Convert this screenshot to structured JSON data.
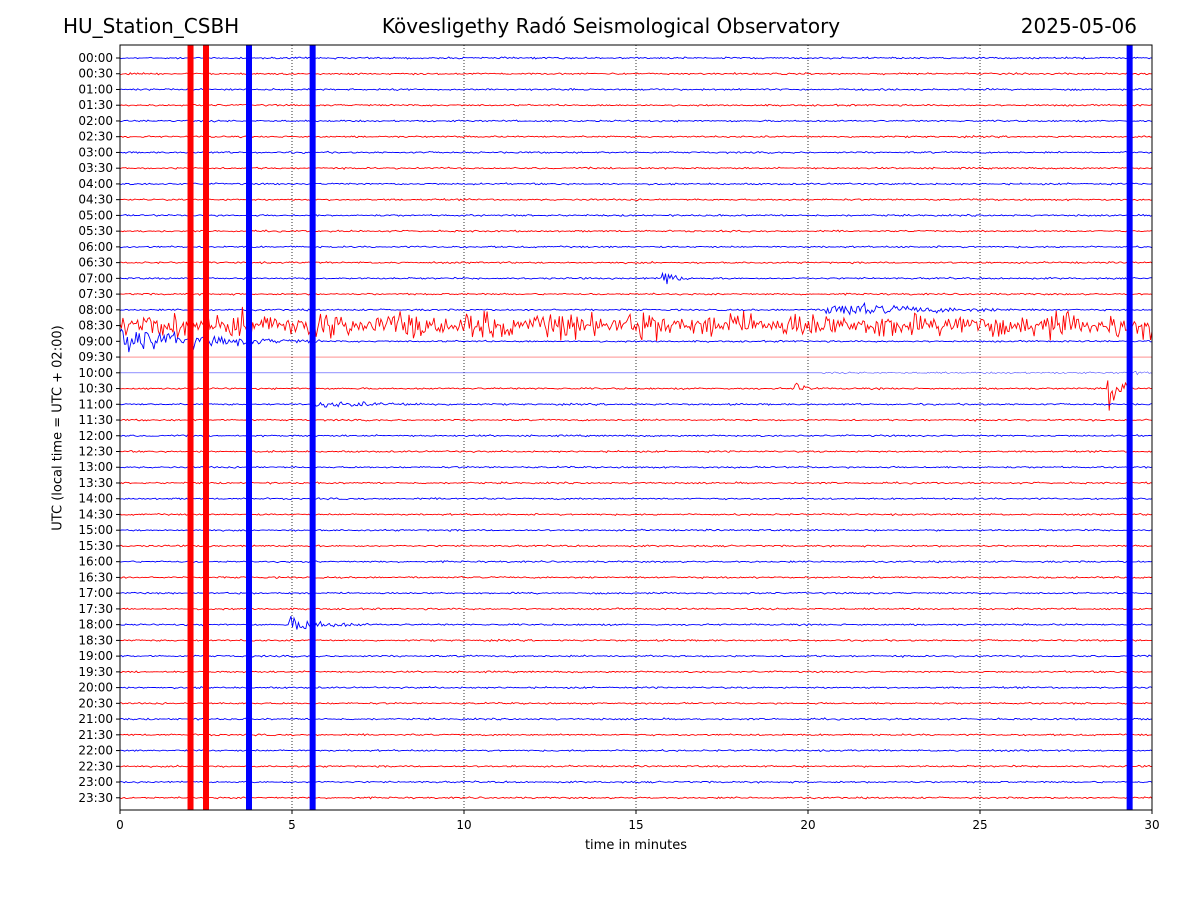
{
  "header": {
    "station": "HU_Station_CSBH",
    "observatory": "Kövesligethy Radó Seismological Observatory",
    "date": "2025-05-06"
  },
  "chart_data": {
    "type": "line",
    "title": "Kövesligethy Radó Seismological Observatory",
    "xlabel": "time in minutes",
    "ylabel": "UTC (local time = UTC + 02:00)",
    "xlim": [
      0,
      30
    ],
    "x_ticks": [
      0,
      5,
      10,
      15,
      20,
      25,
      30
    ],
    "grid": "vertical dotted at x ticks",
    "row_labels": [
      "00:00",
      "00:30",
      "01:00",
      "01:30",
      "02:00",
      "02:30",
      "03:00",
      "03:30",
      "04:00",
      "04:30",
      "05:00",
      "05:30",
      "06:00",
      "06:30",
      "07:00",
      "07:30",
      "08:00",
      "08:30",
      "09:00",
      "09:30",
      "10:00",
      "10:30",
      "11:00",
      "11:30",
      "12:00",
      "12:30",
      "13:00",
      "13:30",
      "14:00",
      "14:30",
      "15:00",
      "15:30",
      "16:00",
      "16:30",
      "17:00",
      "17:30",
      "18:00",
      "18:30",
      "19:00",
      "19:30",
      "20:00",
      "20:30",
      "21:00",
      "21:30",
      "22:00",
      "22:30",
      "23:00",
      "23:30"
    ],
    "colors": {
      "even_rows": "#0000ff",
      "odd_rows": "#ff0000"
    },
    "persistent_bands": [
      {
        "x_min": 2.05,
        "color": "#ff0000"
      },
      {
        "x_min": 2.5,
        "color": "#ff0000"
      },
      {
        "x_min": 3.75,
        "color": "#0000ff"
      },
      {
        "x_min": 5.6,
        "color": "#0000ff"
      },
      {
        "x_min": 29.35,
        "color": "#0000ff"
      }
    ],
    "events": [
      {
        "row": "08:30",
        "x_start": 0.0,
        "x_end": 30.0,
        "amplitude": "high",
        "note": "continuous noise burst"
      },
      {
        "row": "09:00",
        "x_start": 0.0,
        "x_end": 5.8,
        "amplitude": "high"
      },
      {
        "row": "08:00",
        "x_start": 20.5,
        "x_end": 27.0,
        "amplitude": "medium"
      },
      {
        "row": "07:00",
        "x_start": 15.7,
        "x_end": 16.5,
        "amplitude": "high"
      },
      {
        "row": "10:30",
        "x_start": 19.6,
        "x_end": 20.4,
        "amplitude": "medium"
      },
      {
        "row": "10:30",
        "x_start": 28.7,
        "x_end": 29.3,
        "amplitude": "very high"
      },
      {
        "row": "11:00",
        "x_start": 5.5,
        "x_end": 13.0,
        "amplitude": "low"
      },
      {
        "row": "18:00",
        "x_start": 4.9,
        "x_end": 7.6,
        "amplitude": "medium"
      },
      {
        "row": "10:00",
        "x_start": 29.5,
        "x_end": 30.0,
        "amplitude": "low"
      }
    ],
    "data_gaps": [
      {
        "row": "09:30",
        "x_start": 0.0,
        "x_end": 30.0
      },
      {
        "row": "10:00",
        "x_start": 0.0,
        "x_end": 20.4
      }
    ]
  }
}
